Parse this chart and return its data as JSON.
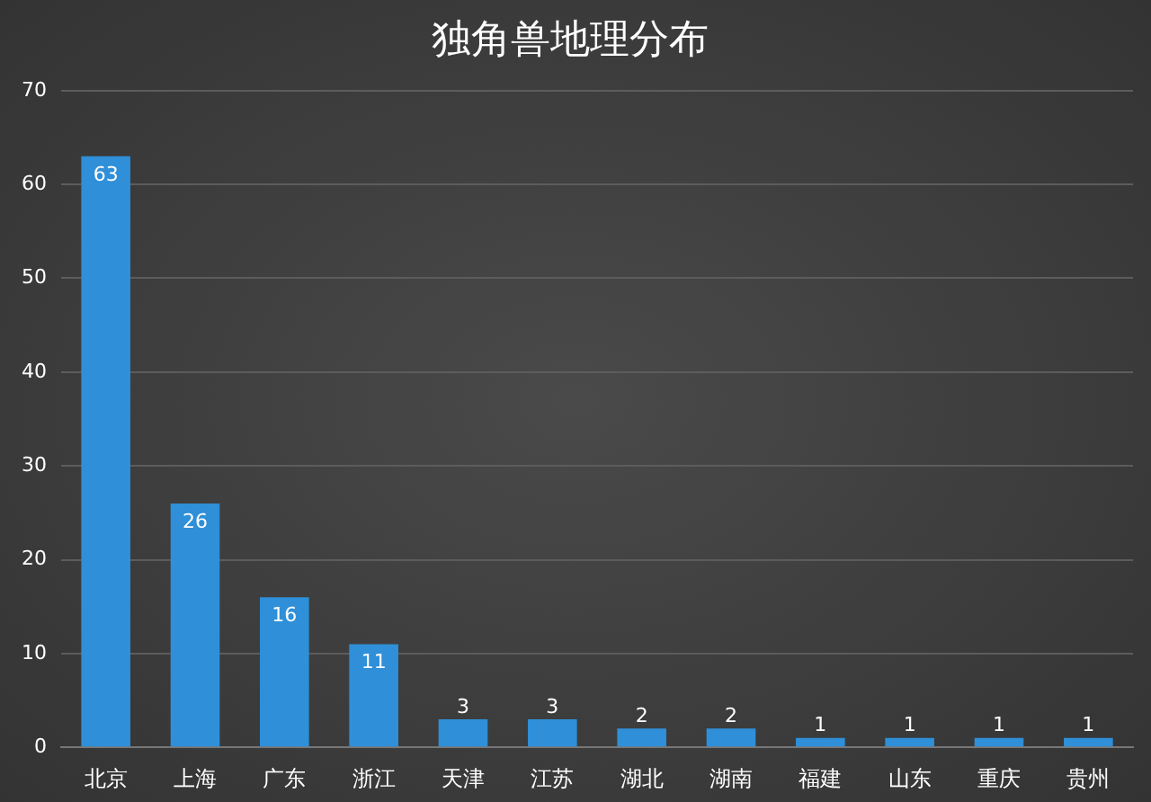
{
  "chart_data": {
    "type": "bar",
    "title": "独角兽地理分布",
    "categories": [
      "北京",
      "上海",
      "广东",
      "浙江",
      "天津",
      "江苏",
      "湖北",
      "湖南",
      "福建",
      "山东",
      "重庆",
      "贵州"
    ],
    "values": [
      63,
      26,
      16,
      11,
      3,
      3,
      2,
      2,
      1,
      1,
      1,
      1
    ],
    "color": "#2f8fd8",
    "ylim": [
      0,
      70
    ],
    "yticks": [
      0,
      10,
      20,
      30,
      40,
      50,
      60,
      70
    ],
    "grid": "y",
    "data_labels": true
  }
}
